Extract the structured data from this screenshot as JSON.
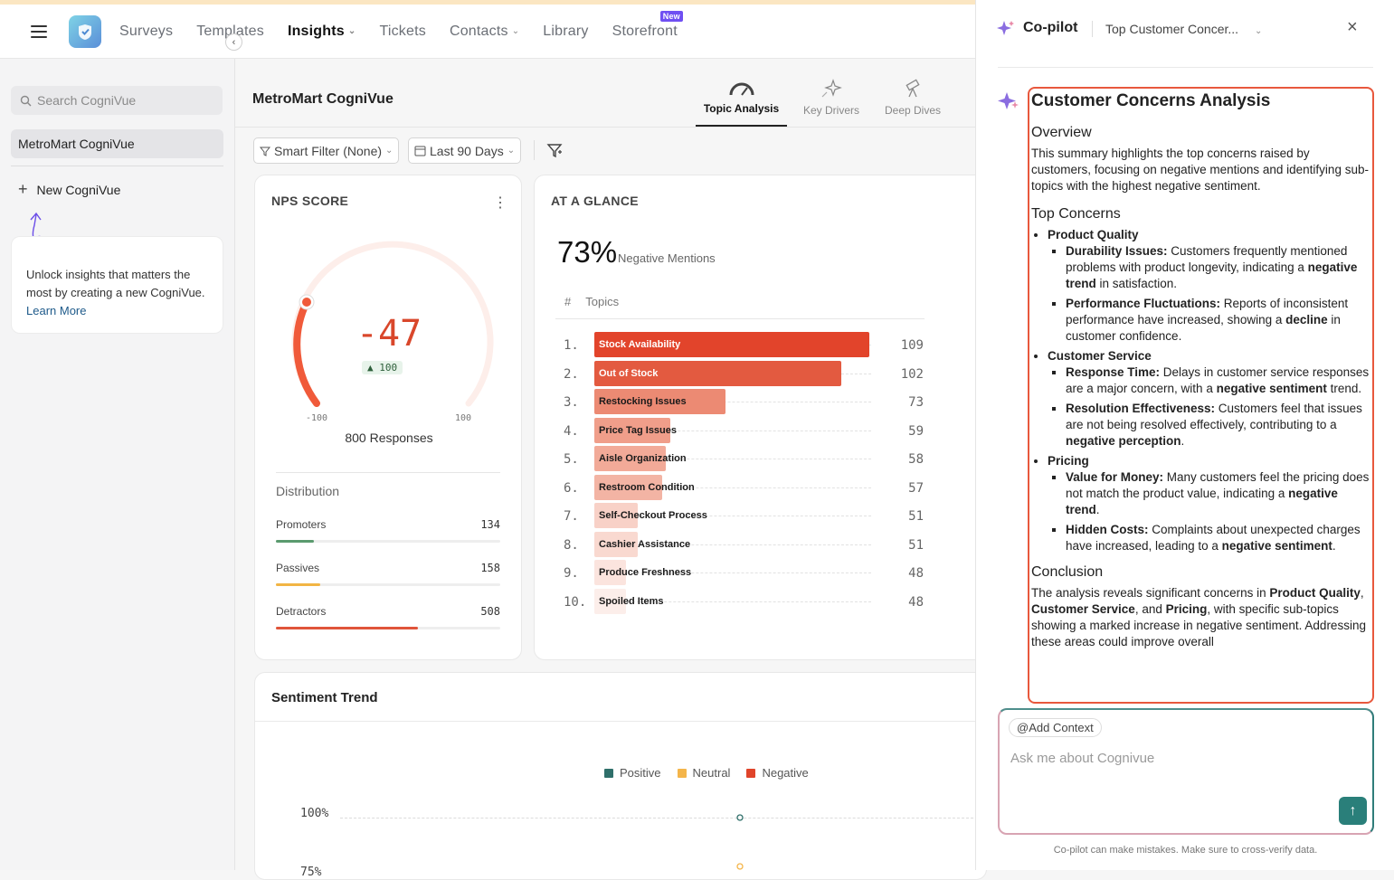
{
  "nav": {
    "items": [
      {
        "label": "Surveys"
      },
      {
        "label": "Templates"
      },
      {
        "label": "Insights"
      },
      {
        "label": "Tickets"
      },
      {
        "label": "Contacts"
      },
      {
        "label": "Library"
      },
      {
        "label": "Storefront"
      }
    ],
    "new_badge": "New"
  },
  "sidebar": {
    "search_placeholder": "Search CogniVue",
    "active_item": "MetroMart CogniVue",
    "new_label": "New CogniVue",
    "promo_text": "Unlock insights that matters the most by creating a new CogniVue.",
    "promo_link": "Learn More"
  },
  "main": {
    "title": "MetroMart CogniVue",
    "tabs": [
      {
        "label": "Topic Analysis"
      },
      {
        "label": "Key Drivers"
      },
      {
        "label": "Deep Dives"
      }
    ],
    "filters": {
      "smart_filter": "Smart Filter (None)",
      "date_range": "Last 90 Days"
    }
  },
  "nps": {
    "title": "NPS SCORE",
    "score": "-47",
    "change": "100",
    "min": "-100",
    "max": "100",
    "responses": "800 Responses",
    "distribution_title": "Distribution",
    "distribution": [
      {
        "label": "Promoters",
        "value": "134",
        "fraction": 0.1675,
        "color": "#5a9a6e"
      },
      {
        "label": "Passives",
        "value": "158",
        "fraction": 0.1975,
        "color": "#f2b544"
      },
      {
        "label": "Detractors",
        "value": "508",
        "fraction": 0.635,
        "color": "#e0553a"
      }
    ]
  },
  "glance": {
    "title": "AT A GLANCE",
    "pct": "73%",
    "pct_label": "Negative Mentions",
    "col_hash": "#",
    "col_topics": "Topics",
    "topics": [
      {
        "idx": "1.",
        "name": "Stock Availability",
        "count": "109",
        "value": 109,
        "color": "#e2442b",
        "text": "#ffffff"
      },
      {
        "idx": "2.",
        "name": "Out of Stock",
        "count": "102",
        "value": 102,
        "color": "#e35a40",
        "text": "#ffffff"
      },
      {
        "idx": "3.",
        "name": "Restocking Issues",
        "count": "73",
        "value": 73,
        "color": "#ec8a73",
        "text": "#1a1a1a"
      },
      {
        "idx": "4.",
        "name": "Price Tag Issues",
        "count": "59",
        "value": 59,
        "color": "#f09e8a",
        "text": "#1a1a1a"
      },
      {
        "idx": "5.",
        "name": "Aisle Organization",
        "count": "58",
        "value": 58,
        "color": "#f2aa98",
        "text": "#1a1a1a"
      },
      {
        "idx": "6.",
        "name": "Restroom Condition",
        "count": "57",
        "value": 57,
        "color": "#f3b4a4",
        "text": "#1a1a1a"
      },
      {
        "idx": "7.",
        "name": "Self-Checkout Process",
        "count": "51",
        "value": 51,
        "color": "#f8d1c7",
        "text": "#1a1a1a"
      },
      {
        "idx": "8.",
        "name": "Cashier Assistance",
        "count": "51",
        "value": 51,
        "color": "#f9d9d0",
        "text": "#1a1a1a"
      },
      {
        "idx": "9.",
        "name": "Produce Freshness",
        "count": "48",
        "value": 48,
        "color": "#fbe4de",
        "text": "#1a1a1a"
      },
      {
        "idx": "10.",
        "name": "Spoiled Items",
        "count": "48",
        "value": 48,
        "color": "#fceeea",
        "text": "#1a1a1a"
      }
    ]
  },
  "trend": {
    "title": "Sentiment Trend",
    "legend": [
      {
        "label": "Positive",
        "color": "#2f6f6a"
      },
      {
        "label": "Neutral",
        "color": "#f4b54a"
      },
      {
        "label": "Negative",
        "color": "#e0442a"
      }
    ],
    "y_ticks": [
      "100%",
      "75%"
    ]
  },
  "copilot": {
    "title": "Co-pilot",
    "thread": "Top Customer Concer...",
    "answer": {
      "title": "Customer Concerns Analysis",
      "overview_h": "Overview",
      "overview": "This summary highlights the top concerns raised by customers, focusing on negative mentions and identifying sub-topics with the highest negative sentiment.",
      "top_h": "Top Concerns",
      "concerns": [
        {
          "name": "Product Quality",
          "items": [
            {
              "term": "Durability Issues:",
              "pre": " Customers frequently mentioned problems with product longevity, indicating a ",
              "bold": "negative trend",
              "post": " in satisfaction."
            },
            {
              "term": "Performance Fluctuations:",
              "pre": " Reports of inconsistent performance have increased, showing a ",
              "bold": "decline",
              "post": " in customer confidence."
            }
          ]
        },
        {
          "name": "Customer Service",
          "items": [
            {
              "term": "Response Time:",
              "pre": " Delays in customer service responses are a major concern, with a ",
              "bold": "negative sentiment",
              "post": " trend."
            },
            {
              "term": "Resolution Effectiveness:",
              "pre": " Customers feel that issues are not being resolved effectively, contributing to a ",
              "bold": "negative perception",
              "post": "."
            }
          ]
        },
        {
          "name": "Pricing",
          "items": [
            {
              "term": "Value for Money:",
              "pre": " Many customers feel the pricing does not match the product value, indicating a ",
              "bold": "negative trend",
              "post": "."
            },
            {
              "term": "Hidden Costs:",
              "pre": " Complaints about unexpected charges have increased, leading to a ",
              "bold": "negative sentiment",
              "post": "."
            }
          ]
        }
      ],
      "conclusion_h": "Conclusion",
      "conclusion": {
        "t1": "The analysis reveals significant concerns in ",
        "b1": "Product Quality",
        "t2": ", ",
        "b2": "Customer Service",
        "t3": ", and ",
        "b3": "Pricing",
        "t4": ", with specific sub-topics showing a marked increase in negative sentiment. Addressing these areas could improve overall"
      }
    },
    "add_context": "Add Context",
    "input_placeholder": "Ask me about Cognivue",
    "disclaimer": "Co-pilot can make mistakes. Make sure to cross-verify data."
  }
}
